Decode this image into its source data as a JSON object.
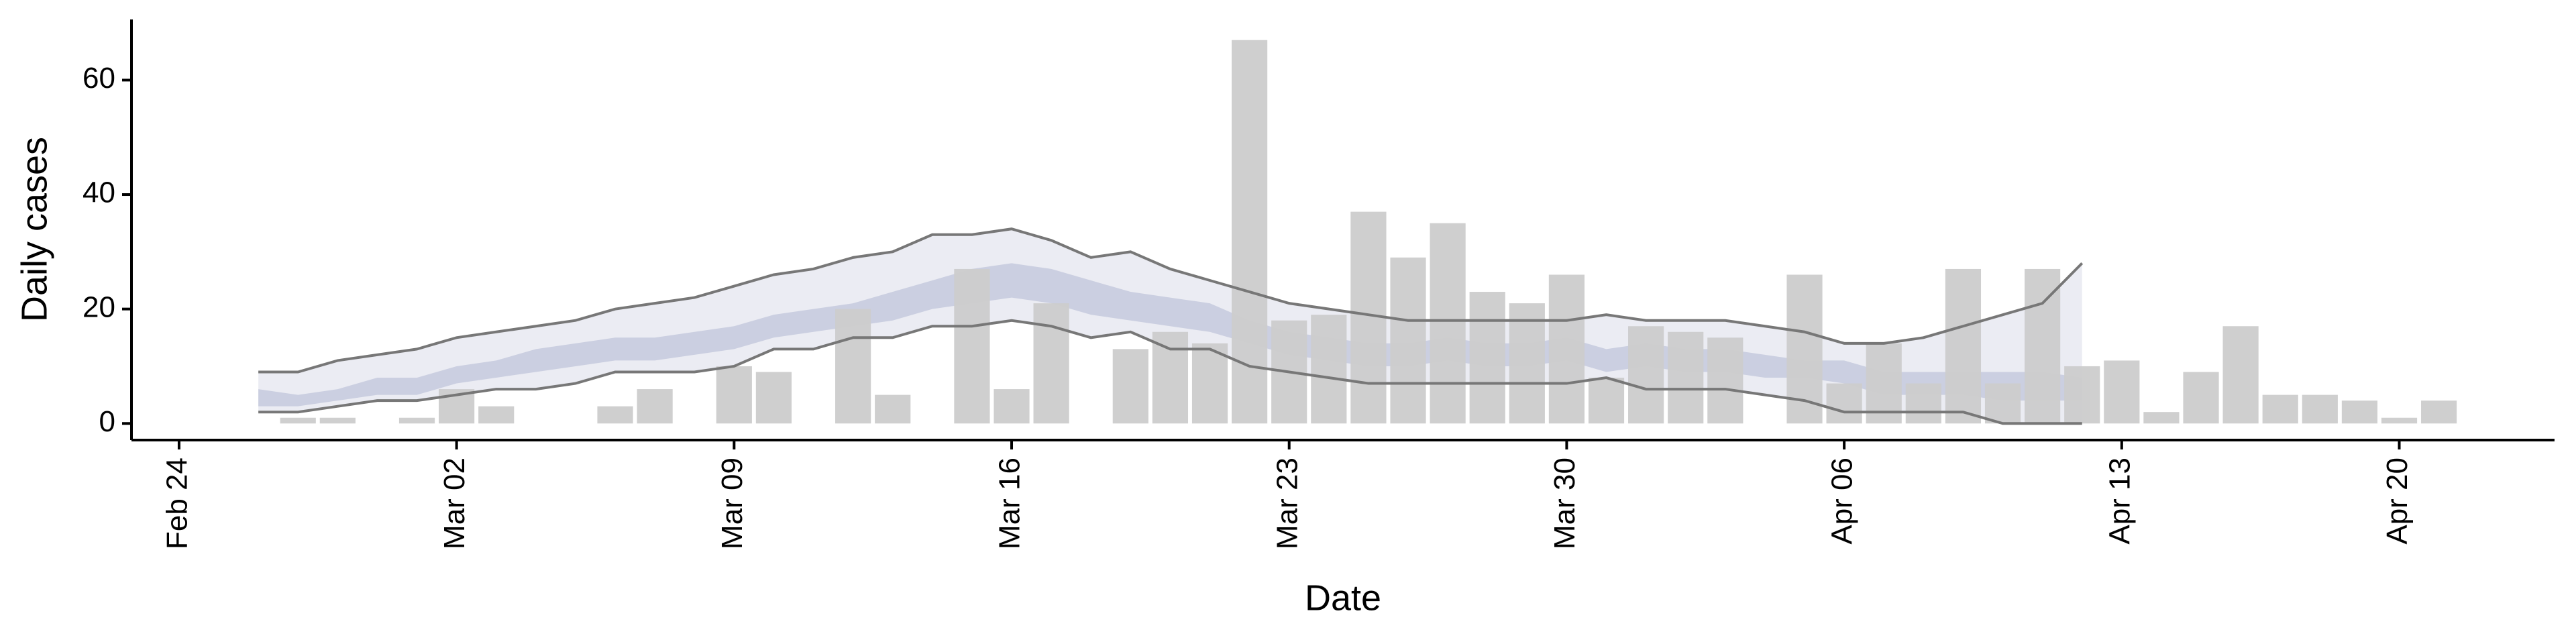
{
  "chart_data": {
    "type": "bar",
    "x_label": "Date",
    "y_label": "Daily cases",
    "categories": [
      null,
      "Feb 24",
      null,
      null,
      null,
      null,
      null,
      null,
      "Mar 02",
      null,
      null,
      null,
      null,
      null,
      null,
      "Mar 09",
      null,
      null,
      null,
      null,
      null,
      null,
      "Mar 16",
      null,
      null,
      null,
      null,
      null,
      null,
      "Mar 23",
      null,
      null,
      null,
      null,
      null,
      null,
      "Mar 30",
      null,
      null,
      null,
      null,
      null,
      null,
      "Apr 06",
      null,
      null,
      null,
      null,
      null,
      null,
      "Apr 13",
      null,
      null,
      null,
      null,
      null,
      null,
      "Apr 20",
      null,
      null,
      null
    ],
    "values": [
      null,
      null,
      null,
      null,
      1,
      1,
      null,
      1,
      6,
      3,
      null,
      null,
      3,
      6,
      null,
      10,
      9,
      null,
      20,
      5,
      null,
      27,
      6,
      21,
      null,
      13,
      16,
      14,
      67,
      18,
      19,
      37,
      29,
      35,
      23,
      21,
      26,
      8,
      17,
      16,
      15,
      null,
      26,
      7,
      14,
      7,
      27,
      7,
      27,
      10,
      11,
      2,
      9,
      17,
      5,
      5,
      4,
      1,
      4,
      null,
      null
    ],
    "color": "#cccccc",
    "bands": [
      {
        "color": "#e8e9f1",
        "edge_color": "#777777",
        "upper": [
          null,
          null,
          null,
          9,
          9,
          11,
          12,
          13,
          15,
          16,
          17,
          18,
          20,
          21,
          22,
          24,
          26,
          27,
          29,
          30,
          33,
          33,
          34,
          32,
          29,
          30,
          27,
          25,
          23,
          21,
          20,
          19,
          18,
          18,
          18,
          18,
          18,
          19,
          18,
          18,
          18,
          17,
          16,
          14,
          14,
          15,
          17,
          19,
          21,
          28,
          null,
          null,
          null,
          null,
          null,
          null,
          null,
          null,
          null,
          null,
          null
        ],
        "lower": [
          null,
          null,
          null,
          2,
          2,
          3,
          4,
          4,
          5,
          6,
          6,
          7,
          9,
          9,
          9,
          10,
          13,
          13,
          15,
          15,
          17,
          17,
          18,
          17,
          15,
          16,
          13,
          13,
          10,
          9,
          8,
          7,
          7,
          7,
          7,
          7,
          7,
          8,
          6,
          6,
          6,
          5,
          4,
          2,
          2,
          2,
          2,
          0,
          0,
          0,
          null,
          null,
          null,
          null,
          null,
          null,
          null,
          null,
          null,
          null,
          null
        ]
      },
      {
        "color": "#c5cadd",
        "upper": [
          null,
          null,
          null,
          6,
          5,
          6,
          8,
          8,
          10,
          11,
          13,
          14,
          15,
          15,
          16,
          17,
          19,
          20,
          21,
          23,
          25,
          27,
          28,
          27,
          25,
          23,
          22,
          21,
          18,
          16,
          15,
          14,
          14,
          15,
          14,
          14,
          15,
          13,
          14,
          13,
          13,
          12,
          11,
          11,
          9,
          9,
          9,
          9,
          9,
          8,
          null,
          null,
          null,
          null,
          null,
          null,
          null,
          null,
          null,
          null,
          null
        ],
        "lower": [
          null,
          null,
          null,
          3,
          3,
          4,
          5,
          5,
          7,
          8,
          9,
          10,
          11,
          11,
          12,
          13,
          15,
          16,
          17,
          18,
          20,
          21,
          22,
          21,
          19,
          18,
          17,
          16,
          14,
          12,
          11,
          10,
          10,
          11,
          10,
          10,
          11,
          9,
          10,
          9,
          9,
          8,
          8,
          7,
          5,
          5,
          5,
          4,
          4,
          4,
          null,
          null,
          null,
          null,
          null,
          null,
          null,
          null,
          null,
          null,
          null
        ]
      }
    ],
    "ylim": [
      -2.9,
      70.6
    ],
    "yticks": [
      0,
      20,
      40,
      60
    ]
  }
}
